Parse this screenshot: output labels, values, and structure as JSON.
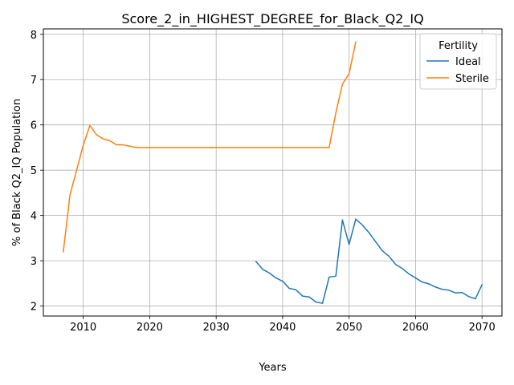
{
  "chart_data": {
    "type": "line",
    "title": "Score_2_in_HIGHEST_DEGREE_for_Black_Q2_IQ",
    "xlabel": "Years",
    "ylabel": "% of Black Q2_IQ Population",
    "xlim": [
      2004,
      2073
    ],
    "ylim": [
      1.78,
      8.12
    ],
    "xticks": [
      2010,
      2020,
      2030,
      2040,
      2050,
      2060,
      2070
    ],
    "yticks": [
      2,
      3,
      4,
      5,
      6,
      7,
      8
    ],
    "grid": true,
    "legend": {
      "title": "Fertility",
      "placement": "top-right",
      "entries": [
        "Ideal",
        "Sterile"
      ]
    },
    "colors": {
      "Ideal": "#1f77b4",
      "Sterile": "#ff7f0e"
    },
    "series": [
      {
        "name": "Ideal",
        "x": [
          2036,
          2037,
          2038,
          2039,
          2040,
          2041,
          2042,
          2043,
          2044,
          2045,
          2046,
          2047,
          2048,
          2049,
          2050,
          2051,
          2052,
          2053,
          2054,
          2055,
          2056,
          2057,
          2058,
          2059,
          2060,
          2061,
          2062,
          2063,
          2064,
          2065,
          2066,
          2067,
          2068,
          2069,
          2070
        ],
        "values": [
          2.98,
          2.81,
          2.73,
          2.62,
          2.55,
          2.39,
          2.36,
          2.22,
          2.2,
          2.09,
          2.06,
          2.64,
          2.66,
          3.9,
          3.36,
          3.92,
          3.79,
          3.62,
          3.42,
          3.22,
          3.1,
          2.92,
          2.83,
          2.71,
          2.62,
          2.53,
          2.49,
          2.42,
          2.37,
          2.35,
          2.29,
          2.3,
          2.21,
          2.16,
          2.47
        ]
      },
      {
        "name": "Sterile",
        "x": [
          2007,
          2008,
          2009,
          2010,
          2011,
          2012,
          2013,
          2014,
          2015,
          2016,
          2017,
          2018,
          2019,
          2020,
          2021,
          2022,
          2023,
          2024,
          2025,
          2026,
          2027,
          2028,
          2029,
          2030,
          2031,
          2032,
          2033,
          2034,
          2035,
          2036,
          2037,
          2038,
          2039,
          2040,
          2041,
          2042,
          2043,
          2044,
          2045,
          2046,
          2047,
          2048,
          2049,
          2050,
          2051
        ],
        "values": [
          3.2,
          4.45,
          5.0,
          5.55,
          5.99,
          5.78,
          5.69,
          5.65,
          5.56,
          5.56,
          5.53,
          5.5,
          5.5,
          5.5,
          5.5,
          5.5,
          5.5,
          5.5,
          5.5,
          5.5,
          5.5,
          5.5,
          5.5,
          5.5,
          5.5,
          5.5,
          5.5,
          5.5,
          5.5,
          5.5,
          5.5,
          5.5,
          5.5,
          5.5,
          5.5,
          5.5,
          5.5,
          5.5,
          5.5,
          5.5,
          5.5,
          6.26,
          6.9,
          7.13,
          7.83
        ]
      }
    ]
  }
}
